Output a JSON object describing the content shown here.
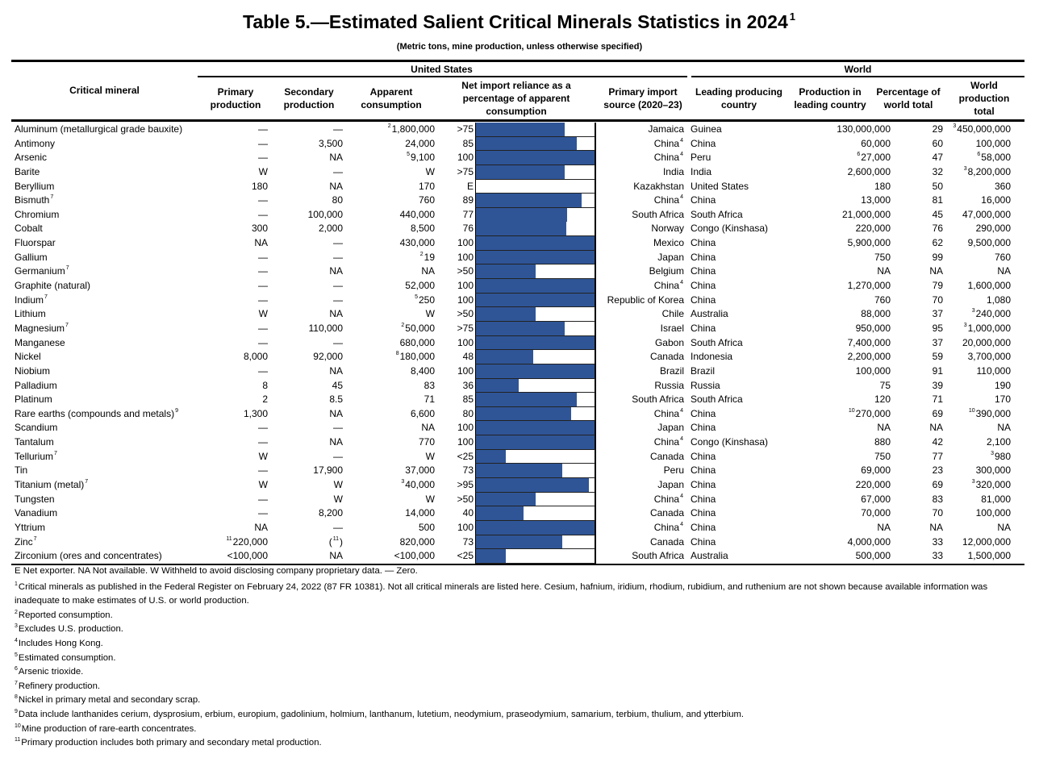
{
  "title": "Table 5.—Estimated Salient Critical Minerals Statistics in 2024",
  "title_note": "1",
  "subtitle": "(Metric tons, mine production, unless otherwise specified)",
  "groups": {
    "us": "United States",
    "world": "World"
  },
  "columns": [
    "Critical mineral",
    "Primary production",
    "Secondary production",
    "Apparent consumption",
    "Net import reliance as a percentage of apparent consumption",
    "Primary import source (2020–23)",
    "Leading producing country",
    "Production in leading country",
    "Percentage of world total",
    "World production total"
  ],
  "colors": {
    "bar": "#2f5597"
  },
  "rows": [
    {
      "mineral": [
        "Aluminum (metallurgical grade bauxite)"
      ],
      "primary": [
        "—"
      ],
      "secondary": [
        "—"
      ],
      "apparent": [
        {
          "sup": "2"
        },
        "1,800,000"
      ],
      "nir": ">75",
      "nir_pct": 75,
      "source": [
        "Jamaica"
      ],
      "leading": "Guinea",
      "prod": [
        "130,000,000"
      ],
      "pct": "29",
      "world": [
        {
          "sup": "3"
        },
        "450,000,000"
      ]
    },
    {
      "mineral": [
        "Antimony"
      ],
      "primary": [
        "—"
      ],
      "secondary": [
        "3,500"
      ],
      "apparent": [
        "24,000"
      ],
      "nir": "85",
      "nir_pct": 85,
      "source": [
        "China",
        {
          "sup": "4"
        }
      ],
      "leading": "China",
      "prod": [
        "60,000"
      ],
      "pct": "60",
      "world": [
        "100,000"
      ]
    },
    {
      "mineral": [
        "Arsenic"
      ],
      "primary": [
        "—"
      ],
      "secondary": [
        "NA"
      ],
      "apparent": [
        {
          "sup": "5"
        },
        "9,100"
      ],
      "nir": "100",
      "nir_pct": 100,
      "source": [
        "China",
        {
          "sup": "4"
        }
      ],
      "leading": "Peru",
      "prod": [
        {
          "sup": "6"
        },
        "27,000"
      ],
      "pct": "47",
      "world": [
        {
          "sup": "6"
        },
        "58,000"
      ]
    },
    {
      "mineral": [
        "Barite"
      ],
      "primary": [
        "W"
      ],
      "secondary": [
        "—"
      ],
      "apparent": [
        "W"
      ],
      "nir": ">75",
      "nir_pct": 75,
      "source": [
        "India"
      ],
      "leading": "India",
      "prod": [
        "2,600,000"
      ],
      "pct": "32",
      "world": [
        {
          "sup": "3"
        },
        "8,200,000"
      ]
    },
    {
      "mineral": [
        "Beryllium"
      ],
      "primary": [
        "180"
      ],
      "secondary": [
        "NA"
      ],
      "apparent": [
        "170"
      ],
      "nir": "E",
      "nir_pct": 0,
      "source": [
        "Kazakhstan"
      ],
      "leading": "United States",
      "prod": [
        "180"
      ],
      "pct": "50",
      "world": [
        "360"
      ]
    },
    {
      "mineral": [
        "Bismuth",
        {
          "sup": "7"
        }
      ],
      "primary": [
        "—"
      ],
      "secondary": [
        "80"
      ],
      "apparent": [
        "760"
      ],
      "nir": "89",
      "nir_pct": 89,
      "source": [
        "China",
        {
          "sup": "4"
        }
      ],
      "leading": "China",
      "prod": [
        "13,000"
      ],
      "pct": "81",
      "world": [
        "16,000"
      ]
    },
    {
      "mineral": [
        "Chromium"
      ],
      "primary": [
        "—"
      ],
      "secondary": [
        "100,000"
      ],
      "apparent": [
        "440,000"
      ],
      "nir": "77",
      "nir_pct": 77,
      "source": [
        "South Africa"
      ],
      "leading": "South Africa",
      "prod": [
        "21,000,000"
      ],
      "pct": "45",
      "world": [
        "47,000,000"
      ]
    },
    {
      "mineral": [
        "Cobalt"
      ],
      "primary": [
        "300"
      ],
      "secondary": [
        "2,000"
      ],
      "apparent": [
        "8,500"
      ],
      "nir": "76",
      "nir_pct": 76,
      "source": [
        "Norway"
      ],
      "leading": "Congo (Kinshasa)",
      "prod": [
        "220,000"
      ],
      "pct": "76",
      "world": [
        "290,000"
      ]
    },
    {
      "mineral": [
        "Fluorspar"
      ],
      "primary": [
        "NA"
      ],
      "secondary": [
        "—"
      ],
      "apparent": [
        "430,000"
      ],
      "nir": "100",
      "nir_pct": 100,
      "source": [
        "Mexico"
      ],
      "leading": "China",
      "prod": [
        "5,900,000"
      ],
      "pct": "62",
      "world": [
        "9,500,000"
      ]
    },
    {
      "mineral": [
        "Gallium"
      ],
      "primary": [
        "—"
      ],
      "secondary": [
        "—"
      ],
      "apparent": [
        {
          "sup": "2"
        },
        "19"
      ],
      "nir": "100",
      "nir_pct": 100,
      "source": [
        "Japan"
      ],
      "leading": "China",
      "prod": [
        "750"
      ],
      "pct": "99",
      "world": [
        "760"
      ]
    },
    {
      "mineral": [
        "Germanium",
        {
          "sup": "7"
        }
      ],
      "primary": [
        "—"
      ],
      "secondary": [
        "NA"
      ],
      "apparent": [
        "NA"
      ],
      "nir": ">50",
      "nir_pct": 50,
      "source": [
        "Belgium"
      ],
      "leading": "China",
      "prod": [
        "NA"
      ],
      "pct": "NA",
      "world": [
        "NA"
      ]
    },
    {
      "mineral": [
        "Graphite (natural)"
      ],
      "primary": [
        "—"
      ],
      "secondary": [
        "—"
      ],
      "apparent": [
        "52,000"
      ],
      "nir": "100",
      "nir_pct": 100,
      "source": [
        "China",
        {
          "sup": "4"
        }
      ],
      "leading": "China",
      "prod": [
        "1,270,000"
      ],
      "pct": "79",
      "world": [
        "1,600,000"
      ]
    },
    {
      "mineral": [
        "Indium",
        {
          "sup": "7"
        }
      ],
      "primary": [
        "—"
      ],
      "secondary": [
        "—"
      ],
      "apparent": [
        {
          "sup": "5"
        },
        "250"
      ],
      "nir": "100",
      "nir_pct": 100,
      "source": [
        "Republic of Korea"
      ],
      "leading": "China",
      "prod": [
        "760"
      ],
      "pct": "70",
      "world": [
        "1,080"
      ]
    },
    {
      "mineral": [
        "Lithium"
      ],
      "primary": [
        "W"
      ],
      "secondary": [
        "NA"
      ],
      "apparent": [
        "W"
      ],
      "nir": ">50",
      "nir_pct": 50,
      "source": [
        "Chile"
      ],
      "leading": "Australia",
      "prod": [
        "88,000"
      ],
      "pct": "37",
      "world": [
        {
          "sup": "3"
        },
        "240,000"
      ]
    },
    {
      "mineral": [
        "Magnesium",
        {
          "sup": "7"
        }
      ],
      "primary": [
        "—"
      ],
      "secondary": [
        "110,000"
      ],
      "apparent": [
        {
          "sup": "2"
        },
        "50,000"
      ],
      "nir": ">75",
      "nir_pct": 75,
      "source": [
        "Israel"
      ],
      "leading": "China",
      "prod": [
        "950,000"
      ],
      "pct": "95",
      "world": [
        {
          "sup": "3"
        },
        "1,000,000"
      ]
    },
    {
      "mineral": [
        "Manganese"
      ],
      "primary": [
        "—"
      ],
      "secondary": [
        "—"
      ],
      "apparent": [
        "680,000"
      ],
      "nir": "100",
      "nir_pct": 100,
      "source": [
        "Gabon"
      ],
      "leading": "South Africa",
      "prod": [
        "7,400,000"
      ],
      "pct": "37",
      "world": [
        "20,000,000"
      ]
    },
    {
      "mineral": [
        "Nickel"
      ],
      "primary": [
        "8,000"
      ],
      "secondary": [
        "92,000"
      ],
      "apparent": [
        {
          "sup": "8"
        },
        "180,000"
      ],
      "nir": "48",
      "nir_pct": 48,
      "source": [
        "Canada"
      ],
      "leading": "Indonesia",
      "prod": [
        "2,200,000"
      ],
      "pct": "59",
      "world": [
        "3,700,000"
      ]
    },
    {
      "mineral": [
        "Niobium"
      ],
      "primary": [
        "—"
      ],
      "secondary": [
        "NA"
      ],
      "apparent": [
        "8,400"
      ],
      "nir": "100",
      "nir_pct": 100,
      "source": [
        "Brazil"
      ],
      "leading": "Brazil",
      "prod": [
        "100,000"
      ],
      "pct": "91",
      "world": [
        "110,000"
      ]
    },
    {
      "mineral": [
        "Palladium"
      ],
      "primary": [
        "8"
      ],
      "secondary": [
        "45"
      ],
      "apparent": [
        "83"
      ],
      "nir": "36",
      "nir_pct": 36,
      "source": [
        "Russia"
      ],
      "leading": "Russia",
      "prod": [
        "75"
      ],
      "pct": "39",
      "world": [
        "190"
      ]
    },
    {
      "mineral": [
        "Platinum"
      ],
      "primary": [
        "2"
      ],
      "secondary": [
        "8.5"
      ],
      "apparent": [
        "71"
      ],
      "nir": "85",
      "nir_pct": 85,
      "source": [
        "South Africa"
      ],
      "leading": "South Africa",
      "prod": [
        "120"
      ],
      "pct": "71",
      "world": [
        "170"
      ]
    },
    {
      "mineral": [
        "Rare earths (compounds and metals)",
        {
          "sup": "9"
        }
      ],
      "primary": [
        "1,300"
      ],
      "secondary": [
        "NA"
      ],
      "apparent": [
        "6,600"
      ],
      "nir": "80",
      "nir_pct": 80,
      "source": [
        "China",
        {
          "sup": "4"
        }
      ],
      "leading": "China",
      "prod": [
        {
          "sup": "10"
        },
        "270,000"
      ],
      "pct": "69",
      "world": [
        {
          "sup": "10"
        },
        "390,000"
      ]
    },
    {
      "mineral": [
        "Scandium"
      ],
      "primary": [
        "—"
      ],
      "secondary": [
        "—"
      ],
      "apparent": [
        "NA"
      ],
      "nir": "100",
      "nir_pct": 100,
      "source": [
        "Japan"
      ],
      "leading": "China",
      "prod": [
        "NA"
      ],
      "pct": "NA",
      "world": [
        "NA"
      ]
    },
    {
      "mineral": [
        "Tantalum"
      ],
      "primary": [
        "—"
      ],
      "secondary": [
        "NA"
      ],
      "apparent": [
        "770"
      ],
      "nir": "100",
      "nir_pct": 100,
      "source": [
        "China",
        {
          "sup": "4"
        }
      ],
      "leading": "Congo (Kinshasa)",
      "prod": [
        "880"
      ],
      "pct": "42",
      "world": [
        "2,100"
      ]
    },
    {
      "mineral": [
        "Tellurium",
        {
          "sup": "7"
        }
      ],
      "primary": [
        "W"
      ],
      "secondary": [
        "—"
      ],
      "apparent": [
        "W"
      ],
      "nir": "<25",
      "nir_pct": 25,
      "source": [
        "Canada"
      ],
      "leading": "China",
      "prod": [
        "750"
      ],
      "pct": "77",
      "world": [
        {
          "sup": "3"
        },
        "980"
      ]
    },
    {
      "mineral": [
        "Tin"
      ],
      "primary": [
        "—"
      ],
      "secondary": [
        "17,900"
      ],
      "apparent": [
        "37,000"
      ],
      "nir": "73",
      "nir_pct": 73,
      "source": [
        "Peru"
      ],
      "leading": "China",
      "prod": [
        "69,000"
      ],
      "pct": "23",
      "world": [
        "300,000"
      ]
    },
    {
      "mineral": [
        "Titanium (metal)",
        {
          "sup": "7"
        }
      ],
      "primary": [
        "W"
      ],
      "secondary": [
        "W"
      ],
      "apparent": [
        {
          "sup": "3"
        },
        "40,000"
      ],
      "nir": ">95",
      "nir_pct": 95,
      "source": [
        "Japan"
      ],
      "leading": "China",
      "prod": [
        "220,000"
      ],
      "pct": "69",
      "world": [
        {
          "sup": "3"
        },
        "320,000"
      ]
    },
    {
      "mineral": [
        "Tungsten"
      ],
      "primary": [
        "—"
      ],
      "secondary": [
        "W"
      ],
      "apparent": [
        "W"
      ],
      "nir": ">50",
      "nir_pct": 50,
      "source": [
        "China",
        {
          "sup": "4"
        }
      ],
      "leading": "China",
      "prod": [
        "67,000"
      ],
      "pct": "83",
      "world": [
        "81,000"
      ]
    },
    {
      "mineral": [
        "Vanadium"
      ],
      "primary": [
        "—"
      ],
      "secondary": [
        "8,200"
      ],
      "apparent": [
        "14,000"
      ],
      "nir": "40",
      "nir_pct": 40,
      "source": [
        "Canada"
      ],
      "leading": "China",
      "prod": [
        "70,000"
      ],
      "pct": "70",
      "world": [
        "100,000"
      ]
    },
    {
      "mineral": [
        "Yttrium"
      ],
      "primary": [
        "NA"
      ],
      "secondary": [
        "—"
      ],
      "apparent": [
        "500"
      ],
      "nir": "100",
      "nir_pct": 100,
      "source": [
        "China",
        {
          "sup": "4"
        }
      ],
      "leading": "China",
      "prod": [
        "NA"
      ],
      "pct": "NA",
      "world": [
        "NA"
      ]
    },
    {
      "mineral": [
        "Zinc",
        {
          "sup": "7"
        }
      ],
      "primary": [
        {
          "sup": "11"
        },
        "220,000"
      ],
      "secondary": [
        "(",
        {
          "sup": "11"
        },
        ")"
      ],
      "apparent": [
        "820,000"
      ],
      "nir": "73",
      "nir_pct": 73,
      "source": [
        "Canada"
      ],
      "leading": "China",
      "prod": [
        "4,000,000"
      ],
      "pct": "33",
      "world": [
        "12,000,000"
      ]
    },
    {
      "mineral": [
        "Zirconium (ores and concentrates)"
      ],
      "primary": [
        "<100,000"
      ],
      "secondary": [
        "NA"
      ],
      "apparent": [
        "<100,000"
      ],
      "nir": "<25",
      "nir_pct": 25,
      "source": [
        "South Africa"
      ],
      "leading": "Australia",
      "prod": [
        "500,000"
      ],
      "pct": "33",
      "world": [
        "1,500,000"
      ]
    }
  ],
  "notes": [
    {
      "sup": "",
      "text": "E Net exporter. NA Not available. W Withheld to avoid disclosing company proprietary data.  — Zero."
    },
    {
      "sup": "1",
      "text": "Critical minerals as published in the Federal Register on February 24, 2022 (87 FR 10381). Not all critical minerals are listed here. Cesium, hafnium, iridium, rhodium, rubidium, and ruthenium are not shown because available information was inadequate to make estimates of U.S. or world production."
    },
    {
      "sup": "2",
      "text": "Reported consumption."
    },
    {
      "sup": "3",
      "text": "Excludes U.S. production."
    },
    {
      "sup": "4",
      "text": "Includes Hong Kong."
    },
    {
      "sup": "5",
      "text": "Estimated consumption."
    },
    {
      "sup": "6",
      "text": "Arsenic trioxide."
    },
    {
      "sup": "7",
      "text": "Refinery production."
    },
    {
      "sup": "8",
      "text": "Nickel in primary metal and secondary scrap."
    },
    {
      "sup": "9",
      "text": "Data include lanthanides cerium, dysprosium, erbium, europium, gadolinium, holmium, lanthanum, lutetium, neodymium, praseodymium, samarium, terbium, thulium, and ytterbium."
    },
    {
      "sup": "10",
      "text": "Mine production of rare-earth concentrates."
    },
    {
      "sup": "11",
      "text": "Primary production includes both primary and secondary metal production."
    }
  ]
}
